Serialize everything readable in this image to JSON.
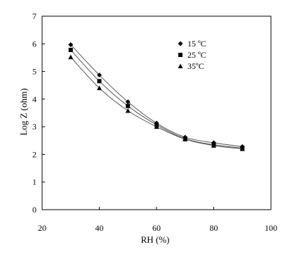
{
  "chart_data": {
    "type": "line",
    "xlabel": "RH (%)",
    "ylabel": "Log Z (ohm)",
    "xlim": [
      20,
      100
    ],
    "ylim": [
      0,
      7
    ],
    "x_ticks": [
      20,
      40,
      60,
      80,
      100
    ],
    "y_ticks": [
      0,
      1,
      2,
      3,
      4,
      5,
      6,
      7
    ],
    "grid": false,
    "legend_position": "top-right",
    "x": [
      30,
      40,
      50,
      60,
      70,
      80,
      90
    ],
    "series": [
      {
        "name": "15 ºC",
        "marker": "diamond",
        "values": [
          5.97,
          4.87,
          3.9,
          3.13,
          2.62,
          2.42,
          2.28
        ]
      },
      {
        "name": "25 ºC",
        "marker": "square",
        "values": [
          5.78,
          4.65,
          3.75,
          3.07,
          2.57,
          2.35,
          2.23
        ]
      },
      {
        "name": "35ºC",
        "marker": "triangle",
        "values": [
          5.52,
          4.4,
          3.58,
          3.0,
          2.55,
          2.32,
          2.2
        ]
      }
    ],
    "colors": {
      "line": "#555555",
      "marker": "#000000",
      "axis": "#000000"
    }
  }
}
